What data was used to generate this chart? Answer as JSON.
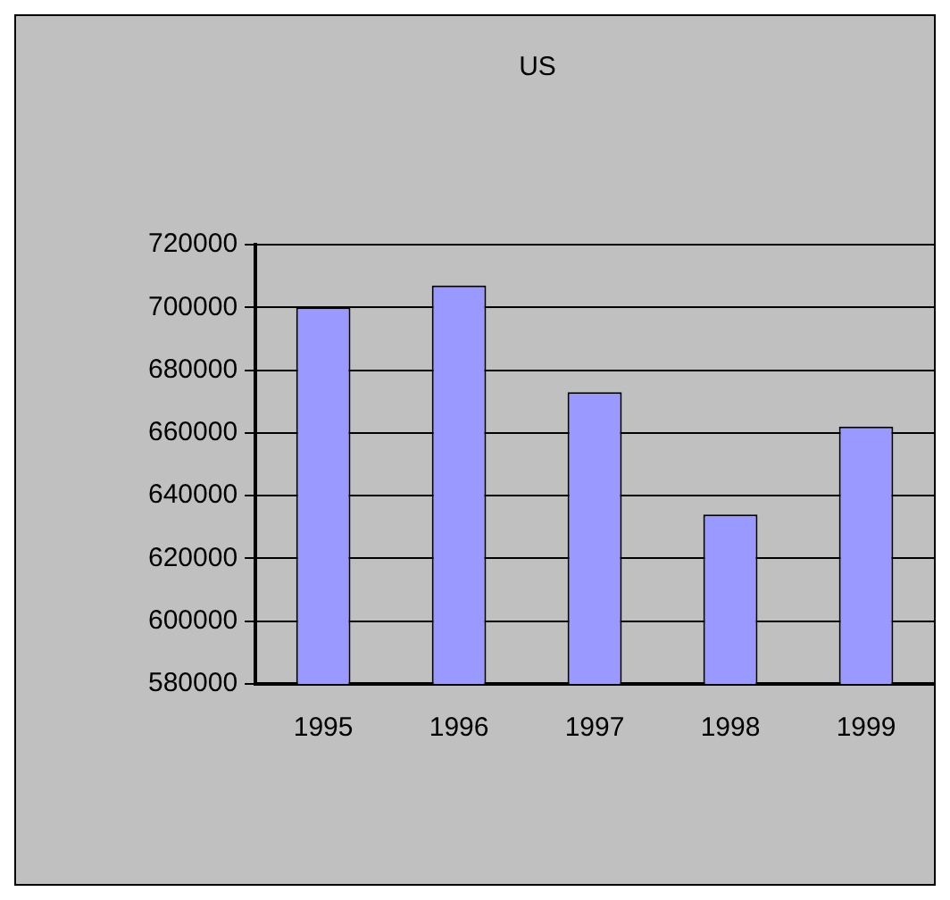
{
  "chart_data": {
    "type": "bar",
    "title": "US",
    "categories": [
      "1995",
      "1996",
      "1997",
      "1998",
      "1999"
    ],
    "values": [
      700000,
      707000,
      673000,
      634000,
      662000
    ],
    "color": "#9999ff",
    "ylim": [
      580000,
      720000
    ],
    "yticks": [
      580000,
      600000,
      620000,
      640000,
      660000,
      680000,
      700000,
      720000
    ],
    "grid": "y",
    "legend": false
  }
}
